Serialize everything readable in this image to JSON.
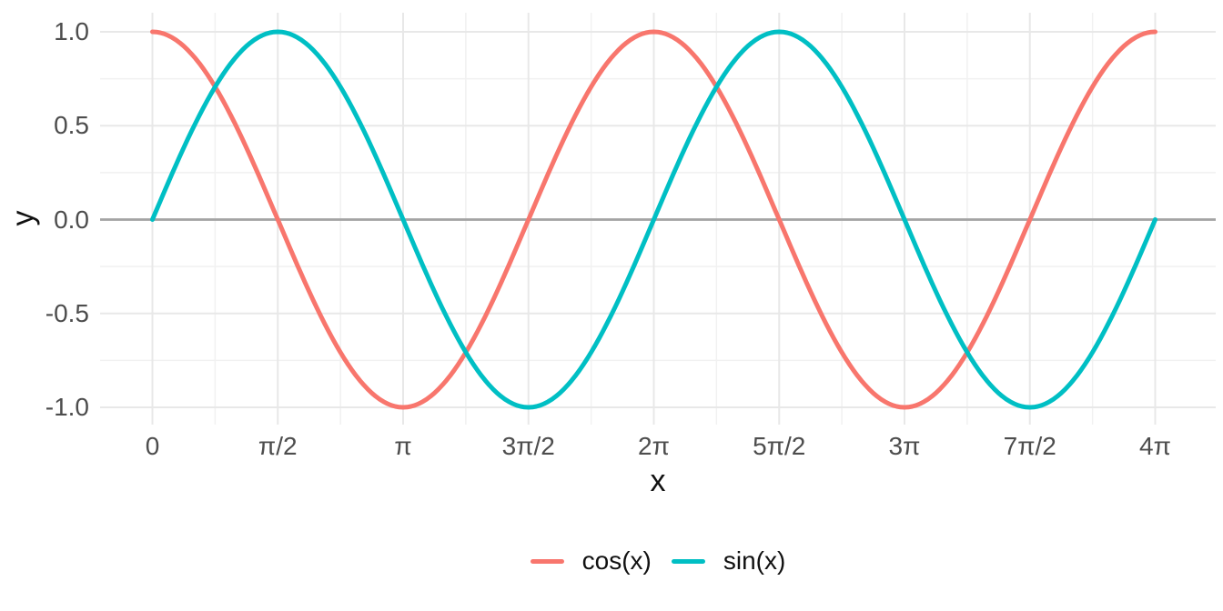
{
  "chart_data": {
    "type": "line",
    "title": "",
    "xlabel": "x",
    "ylabel": "y",
    "x_domain_pi": [
      0,
      4
    ],
    "ylim": [
      -1,
      1
    ],
    "grid": {
      "on": true,
      "major_color": "#e8e8e8",
      "minor_color": "#f1f1f1"
    },
    "background": "#ffffff",
    "zero_line": {
      "y": 0,
      "color": "#a3a3a3"
    },
    "x_ticks": [
      {
        "value_pi": 0,
        "label": "0"
      },
      {
        "value_pi": 0.5,
        "label": "π/2"
      },
      {
        "value_pi": 1,
        "label": "π"
      },
      {
        "value_pi": 1.5,
        "label": "3π/2"
      },
      {
        "value_pi": 2,
        "label": "2π"
      },
      {
        "value_pi": 2.5,
        "label": "5π/2"
      },
      {
        "value_pi": 3,
        "label": "3π"
      },
      {
        "value_pi": 3.5,
        "label": "7π/2"
      },
      {
        "value_pi": 4,
        "label": "4π"
      }
    ],
    "x_minor_ticks_pi": [
      0.25,
      0.75,
      1.25,
      1.75,
      2.25,
      2.75,
      3.25,
      3.75
    ],
    "y_ticks": [
      {
        "value": 1,
        "label": "1.0"
      },
      {
        "value": 0.5,
        "label": "0.5"
      },
      {
        "value": 0,
        "label": "0.0"
      },
      {
        "value": -0.5,
        "label": "-0.5"
      },
      {
        "value": -1,
        "label": "-1.0"
      }
    ],
    "y_minor_ticks": [
      0.75,
      0.25,
      -0.25,
      -0.75
    ],
    "legend": {
      "position": "bottom"
    },
    "series": [
      {
        "name": "cos(x)",
        "fn": "cos",
        "color": "#F8766D",
        "sample_x_pi": [
          0,
          0.25,
          0.5,
          0.75,
          1,
          1.25,
          1.5,
          1.75,
          2,
          2.25,
          2.5,
          2.75,
          3,
          3.25,
          3.5,
          3.75,
          4
        ],
        "sample_y": [
          1,
          0.7071,
          0,
          -0.7071,
          -1,
          -0.7071,
          0,
          0.7071,
          1,
          0.7071,
          0,
          -0.7071,
          -1,
          -0.7071,
          0,
          0.7071,
          1
        ]
      },
      {
        "name": "sin(x)",
        "fn": "sin",
        "color": "#00BFC4",
        "sample_x_pi": [
          0,
          0.25,
          0.5,
          0.75,
          1,
          1.25,
          1.5,
          1.75,
          2,
          2.25,
          2.5,
          2.75,
          3,
          3.25,
          3.5,
          3.75,
          4
        ],
        "sample_y": [
          0,
          0.7071,
          1,
          0.7071,
          0,
          -0.7071,
          -1,
          -0.7071,
          0,
          0.7071,
          1,
          0.7071,
          0,
          -0.7071,
          -1,
          -0.7071,
          0
        ]
      }
    ]
  }
}
